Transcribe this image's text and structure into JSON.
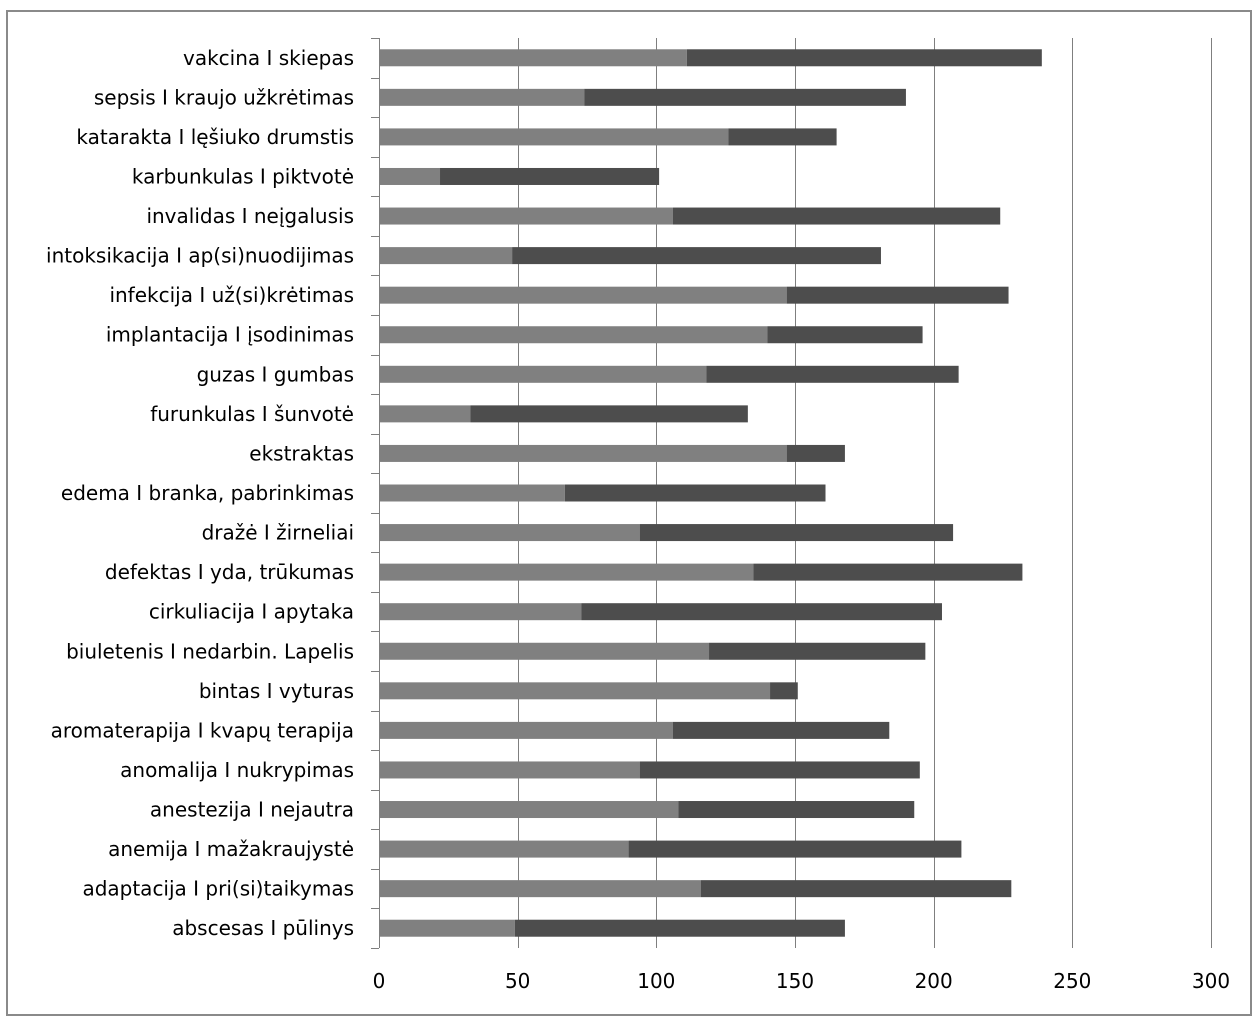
{
  "chart_data": {
    "type": "bar",
    "orientation": "horizontal",
    "stacked": true,
    "title": "",
    "xlabel": "",
    "ylabel": "",
    "xlim": [
      0,
      300
    ],
    "xticks": [
      0,
      50,
      100,
      150,
      200,
      250,
      300
    ],
    "grid": "vertical",
    "legend": "none",
    "categories": [
      "vakcina I skiepas",
      "sepsis I kraujo užkrėtimas",
      "katarakta I lęšiuko drumstis",
      "karbunkulas I piktvotė",
      "invalidas I neįgalusis",
      "intoksikacija I ap(si)nuodijimas",
      "infekcija I už(si)krėtimas",
      "implantacija I įsodinimas",
      "guzas I gumbas",
      "furunkulas I šunvotė",
      "ekstraktas",
      "edema I branka, pabrinkimas",
      "dražė I žirneliai",
      "defektas I yda, trūkumas",
      "cirkuliacija I apytaka",
      "biuletenis I nedarbin. Lapelis",
      "bintas I vyturas",
      "aromaterapija I kvapų terapija",
      "anomalija I nukrypimas",
      "anestezija I nejautra",
      "anemija I mažakraujystė",
      "adaptacija I pri(si)taikymas",
      "abscesas I pūlinys"
    ],
    "series": [
      {
        "color": "#808080",
        "values": [
          111,
          74,
          126,
          22,
          106,
          48,
          147,
          140,
          118,
          33,
          147,
          67,
          94,
          135,
          73,
          119,
          141,
          106,
          94,
          108,
          90,
          116,
          49
        ]
      },
      {
        "color": "#4d4d4d",
        "values": [
          128,
          116,
          39,
          79,
          118,
          133,
          80,
          56,
          91,
          100,
          21,
          94,
          113,
          97,
          130,
          78,
          10,
          78,
          101,
          85,
          120,
          112,
          119
        ]
      }
    ]
  }
}
